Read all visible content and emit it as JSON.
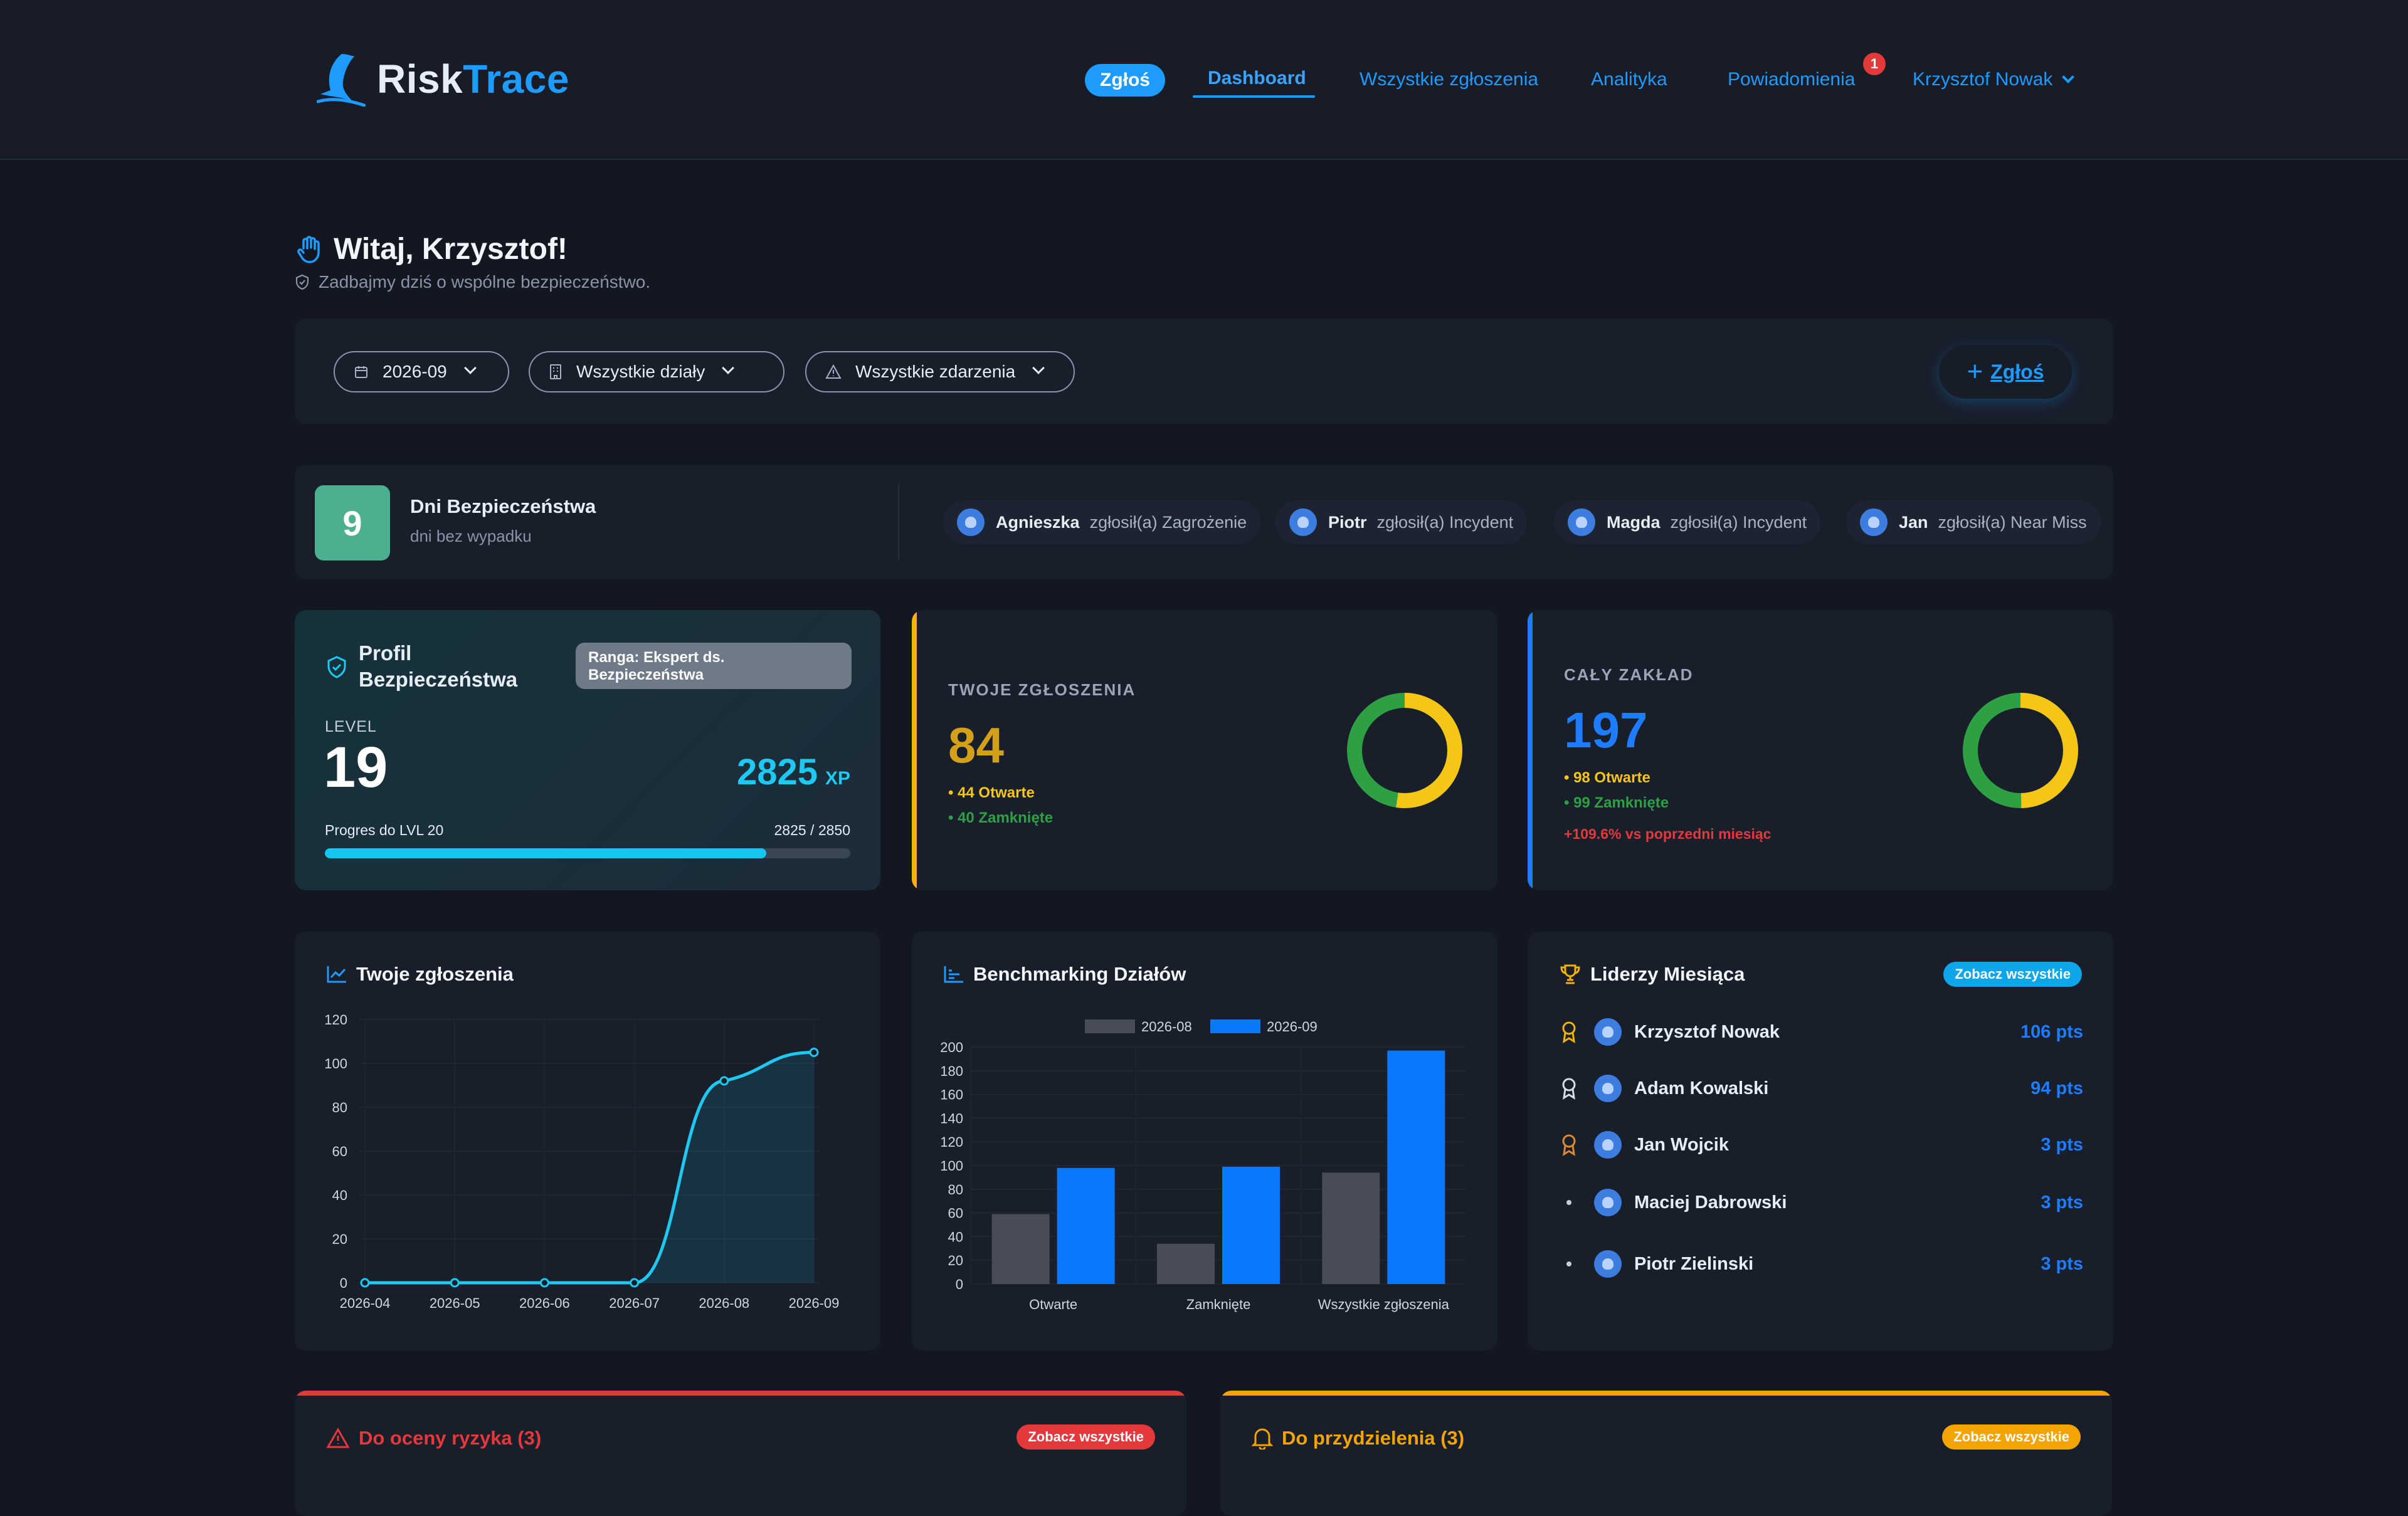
{
  "brand": {
    "name_part1": "Risk",
    "name_part2": "Trace",
    "color": "#1e9bff"
  },
  "nav": {
    "report_pill": "Zgłoś",
    "dashboard": "Dashboard",
    "all_reports": "Wszystkie zgłoszenia",
    "analytics": "Analityka",
    "notifications": "Powiadomienia",
    "notifications_count": "1",
    "user": "Krzysztof Nowak"
  },
  "greeting": {
    "title": "Witaj, Krzysztof!",
    "subtitle": "Zadbajmy dziś o wspólne bezpieczeństwo."
  },
  "filters": {
    "month": "2026-09",
    "department": "Wszystkie działy",
    "event_type": "Wszystkie zdarzenia",
    "report_button": "Zgłoś"
  },
  "safety": {
    "days_count": "9",
    "title": "Dni Bezpieczeństwa",
    "subtitle": "dni bez wypadku",
    "activity": [
      {
        "user": "Agnieszka",
        "text": "zgłosił(a) Zagrożenie"
      },
      {
        "user": "Piotr",
        "text": "zgłosił(a) Incydent"
      },
      {
        "user": "Magda",
        "text": "zgłosił(a) Incydent"
      },
      {
        "user": "Jan",
        "text": "zgłosił(a) Near Miss"
      }
    ]
  },
  "profile": {
    "title": "Profil Bezpieczeństwa",
    "rank": "Ranga: Ekspert ds. Bezpieczeństwa",
    "level_label": "LEVEL",
    "level": "19",
    "xp": "2825",
    "xp_unit": "XP",
    "progress_label": "Progres do LVL 20",
    "progress_text": "2825 / 2850",
    "progress_fraction": 0.84
  },
  "my_reports": {
    "label": "TWOJE ZGŁOSZENIA",
    "total": "84",
    "open": "• 44 Otwarte",
    "closed": "• 40 Zamknięte",
    "open_value": 44,
    "closed_value": 40,
    "colors": {
      "accent": "#f5b301",
      "open": "#f5c518",
      "closed": "#2ea043"
    }
  },
  "plant": {
    "label": "CAŁY ZAKŁAD",
    "total": "197",
    "open": "• 98 Otwarte",
    "closed": "• 99 Zamknięte",
    "change": "+109.6% vs poprzedni miesiąc",
    "open_value": 98,
    "closed_value": 99,
    "colors": {
      "accent": "#1e7dff",
      "open": "#f5c518",
      "closed": "#2ea043",
      "change": "#e5383b"
    }
  },
  "line_panel": {
    "title": "Twoje zgłoszenia"
  },
  "bench_panel": {
    "title": "Benchmarking Działów"
  },
  "chart_data": [
    {
      "type": "line",
      "title": "Twoje zgłoszenia",
      "x": [
        "2026-04",
        "2026-05",
        "2026-06",
        "2026-07",
        "2026-08",
        "2026-09"
      ],
      "series": [
        {
          "values": [
            0,
            0,
            0,
            0,
            92,
            105
          ]
        }
      ],
      "ylim": [
        0,
        120
      ],
      "yticks": [
        0,
        20,
        40,
        60,
        80,
        100,
        120
      ],
      "color": "#1ec8f0",
      "grid": true
    },
    {
      "type": "bar",
      "title": "Benchmarking Działów",
      "categories": [
        "Otwarte",
        "Zamknięte",
        "Wszystkie zgłoszenia"
      ],
      "series": [
        {
          "name": "2026-08",
          "values": [
            59,
            34,
            94
          ],
          "color": "#474c56"
        },
        {
          "name": "2026-09",
          "values": [
            98,
            99,
            197
          ],
          "color": "#0a78ff"
        }
      ],
      "ylim": [
        0,
        200
      ],
      "yticks": [
        0,
        20,
        40,
        60,
        80,
        100,
        120,
        140,
        160,
        180,
        200
      ],
      "legend": "top",
      "grid": true
    }
  ],
  "leaders": {
    "title": "Liderzy Miesiąca",
    "see_all": "Zobacz wszystkie",
    "rows": [
      {
        "name": "Krzysztof Nowak",
        "points": "106 pts",
        "medal": "gold"
      },
      {
        "name": "Adam Kowalski",
        "points": "94 pts",
        "medal": "silver"
      },
      {
        "name": "Jan Wojcik",
        "points": "3 pts",
        "medal": "bronze"
      },
      {
        "name": "Maciej Dabrowski",
        "points": "3 pts",
        "medal": "none"
      },
      {
        "name": "Piotr Zielinski",
        "points": "3 pts",
        "medal": "none"
      }
    ]
  },
  "risk_panel": {
    "title": "Do oceny ryzyka (3)",
    "see_all": "Zobacz wszystkie",
    "color": "#e5383b"
  },
  "assign_panel": {
    "title": "Do przydzielenia (3)",
    "see_all": "Zobacz wszystkie",
    "color": "#f5a300"
  }
}
